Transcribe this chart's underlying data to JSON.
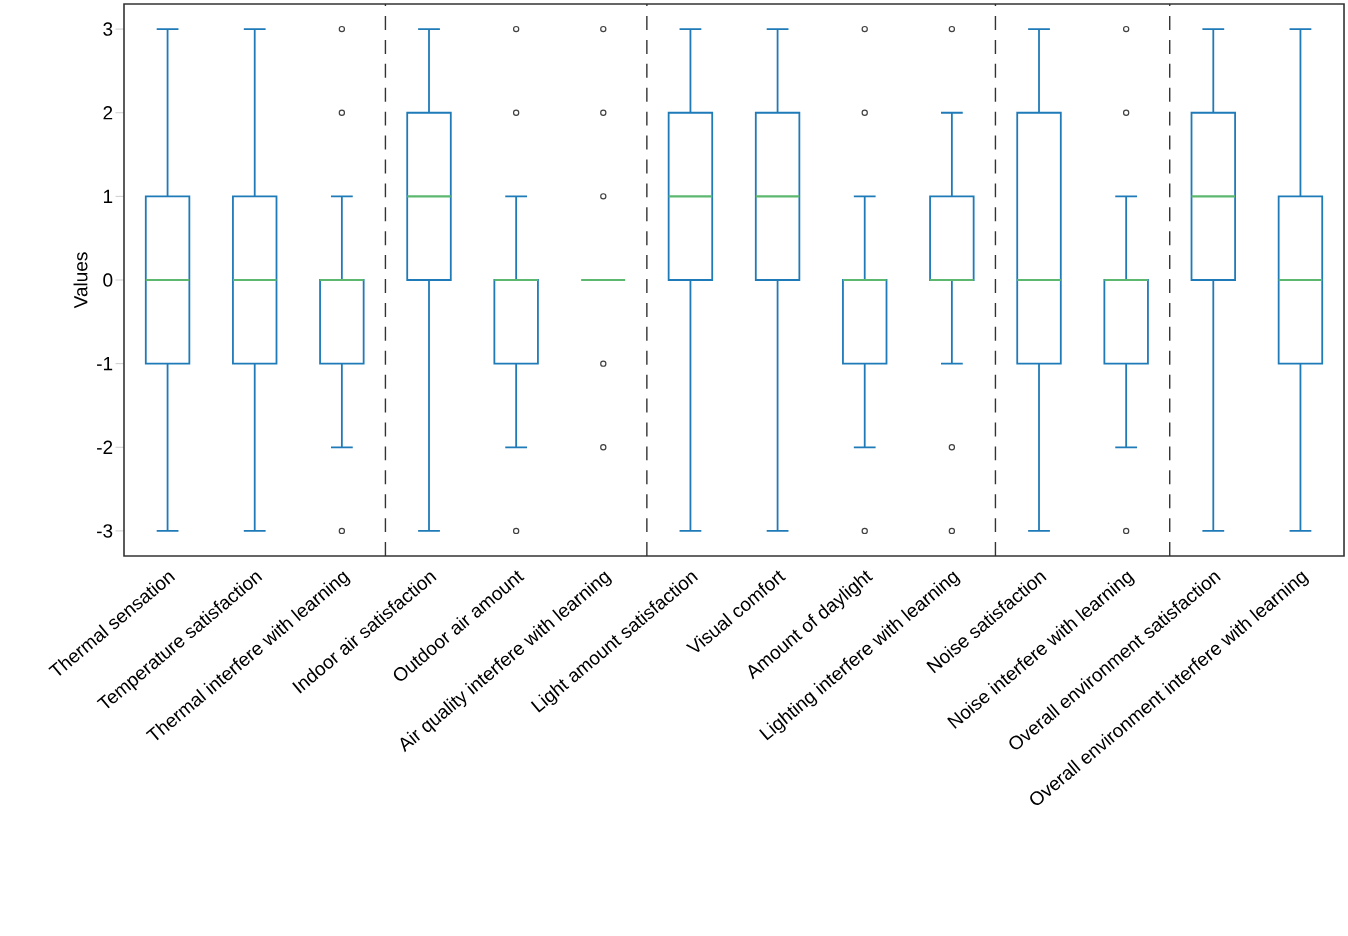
{
  "chart_data": {
    "type": "box",
    "ylabel": "Values",
    "categories": [
      "Thermal sensation",
      "Temperature satisfaction",
      "Thermal interfere with learning",
      "Indoor air satisfaction",
      "Outdoor air amount",
      "Air quality interfere with learning",
      "Light amount satisfaction",
      "Visual comfort",
      "Amount of daylight",
      "Lighting interfere with learning",
      "Noise satisfaction",
      "Noise interfere with learning",
      "Overall environment satisfaction",
      "Overall environment interfere with learning"
    ],
    "series": [
      {
        "color": "#1f7ab8",
        "boxes": [
          {
            "low": -3,
            "q1": -1,
            "median": 0,
            "q3": 1,
            "high": 3
          },
          {
            "low": -3,
            "q1": -1,
            "median": 0,
            "q3": 1,
            "high": 3
          },
          {
            "low": -2,
            "q1": -1,
            "median": 0,
            "q3": 0,
            "high": 1,
            "outliers": [
              3,
              2,
              -3
            ]
          },
          {
            "low": -3,
            "q1": 0,
            "median": 1,
            "q3": 2,
            "high": 3
          },
          {
            "low": -2,
            "q1": -1,
            "median": 0,
            "q3": 0,
            "high": 1,
            "outliers": [
              3,
              2,
              -3
            ]
          },
          {
            "low": 0,
            "q1": 0,
            "median": 0,
            "q3": 0,
            "high": 0,
            "outliers": [
              3,
              2,
              1,
              -1,
              -2
            ]
          },
          {
            "low": -3,
            "q1": 0,
            "median": 1,
            "q3": 2,
            "high": 3
          },
          {
            "low": -3,
            "q1": 0,
            "median": 1,
            "q3": 2,
            "high": 3
          },
          {
            "low": -2,
            "q1": -1,
            "median": 0,
            "q3": 0,
            "high": 1,
            "outliers": [
              3,
              2,
              -3
            ]
          },
          {
            "low": -1,
            "q1": 0,
            "median": 0,
            "q3": 1,
            "high": 2,
            "outliers": [
              3,
              -2,
              -3
            ]
          },
          {
            "low": -3,
            "q1": -1,
            "median": 0,
            "q3": 2,
            "high": 3
          },
          {
            "low": -2,
            "q1": -1,
            "median": 0,
            "q3": 0,
            "high": 1,
            "outliers": [
              3,
              2,
              -3
            ]
          },
          {
            "low": -3,
            "q1": 0,
            "median": 1,
            "q3": 2,
            "high": 3
          },
          {
            "low": -3,
            "q1": -1,
            "median": 0,
            "q3": 1,
            "high": 3
          }
        ]
      }
    ],
    "ylim": [
      -3.3,
      3.3
    ],
    "yticks": [
      -3,
      -2,
      -1,
      0,
      1,
      2,
      3
    ],
    "grid": false
  }
}
